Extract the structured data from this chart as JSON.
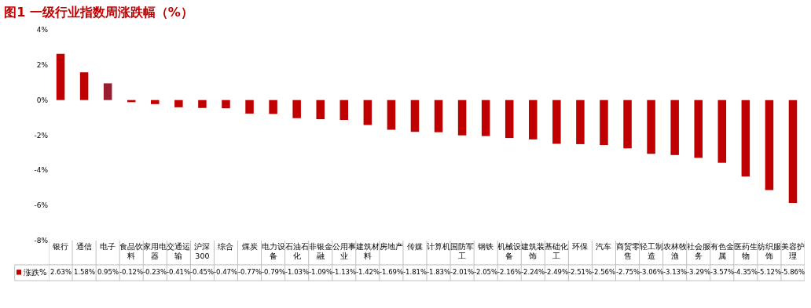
{
  "chart_data": {
    "type": "bar",
    "title": "图1 一级行业指数周涨跌幅（%）",
    "categories": [
      "银行",
      "通信",
      "电子",
      "食品饮料",
      "家用电器",
      "交通运输",
      "沪深300",
      "综合",
      "煤炭",
      "电力设备",
      "石油石化",
      "非银金融",
      "公用事业",
      "建筑材料",
      "房地产",
      "传媒",
      "计算机",
      "国防军工",
      "钢铁",
      "机械设备",
      "建筑装饰",
      "基础化工",
      "环保",
      "汽车",
      "商贸零售",
      "轻工制造",
      "农林牧渔",
      "社会服务",
      "有色金属",
      "医药生物",
      "纺织服饰",
      "美容护理"
    ],
    "series": [
      {
        "name": "涨跌%",
        "color": "#c00000",
        "colors": [
          "#c00000",
          "#c00000",
          "#9b1b30",
          "#c00000",
          "#c00000",
          "#c00000",
          "#c00000",
          "#c00000",
          "#c00000",
          "#c00000",
          "#c00000",
          "#c00000",
          "#c00000",
          "#c00000",
          "#c00000",
          "#c00000",
          "#c00000",
          "#c00000",
          "#c00000",
          "#c00000",
          "#c00000",
          "#c00000",
          "#c00000",
          "#c00000",
          "#c00000",
          "#c00000",
          "#c00000",
          "#c00000",
          "#c00000",
          "#c00000",
          "#c00000",
          "#c00000"
        ],
        "values": [
          2.63,
          1.58,
          0.95,
          -0.12,
          -0.23,
          -0.41,
          -0.45,
          -0.47,
          -0.77,
          -0.79,
          -1.03,
          -1.09,
          -1.13,
          -1.42,
          -1.69,
          -1.81,
          -1.83,
          -2.01,
          -2.05,
          -2.16,
          -2.24,
          -2.49,
          -2.51,
          -2.56,
          -2.75,
          -3.06,
          -3.13,
          -3.29,
          -3.57,
          -4.35,
          -5.12,
          -5.86
        ],
        "value_labels": [
          "2.63%",
          "1.58%",
          "0.95%",
          "-0.12%",
          "-0.23%",
          "-0.41%",
          "-0.45%",
          "-0.47%",
          "-0.77%",
          "-0.79%",
          "-1.03%",
          "-1.09%",
          "-1.13%",
          "-1.42%",
          "-1.69%",
          "-1.81%",
          "-1.83%",
          "-2.01%",
          "-2.05%",
          "-2.16%",
          "-2.24%",
          "-2.49%",
          "-2.51%",
          "-2.56%",
          "-2.75%",
          "-3.06%",
          "-3.13%",
          "-3.29%",
          "-3.57%",
          "-4.35%",
          "-5.12%",
          "-5.86%"
        ]
      }
    ],
    "ylim": [
      -8,
      4
    ],
    "yticks": [
      {
        "value": -8,
        "label": "-8%"
      },
      {
        "value": -6,
        "label": "-6%"
      },
      {
        "value": -4,
        "label": "-4%"
      },
      {
        "value": -2,
        "label": "-2%"
      },
      {
        "value": 0,
        "label": "0%"
      },
      {
        "value": 2,
        "label": "2%"
      },
      {
        "value": 4,
        "label": "4%"
      }
    ],
    "grid": false,
    "legend": "bottom left"
  }
}
